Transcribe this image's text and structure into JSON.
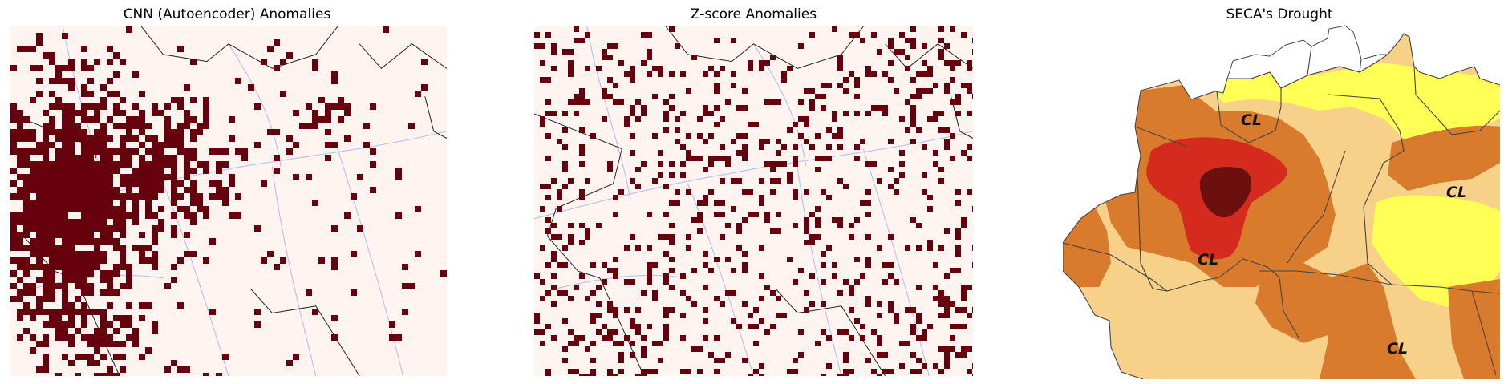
{
  "panels": [
    {
      "title": "CNN (Autoencoder) Anomalies"
    },
    {
      "title": "Z-score Anomalies"
    },
    {
      "title": "SECA's Drought"
    }
  ],
  "seca_labels": [
    "CL",
    "CL",
    "CL",
    "CL"
  ],
  "colors": {
    "background": "#fff4ef",
    "anomaly": "#67000d",
    "river": "#b8c4e8",
    "border": "#222222",
    "drought_exceptional": "#6b0f0f",
    "drought_extreme": "#d42b1e",
    "drought_severe": "#d97b2d",
    "drought_moderate": "#f7d08a",
    "drought_weak": "#ffff55"
  }
}
